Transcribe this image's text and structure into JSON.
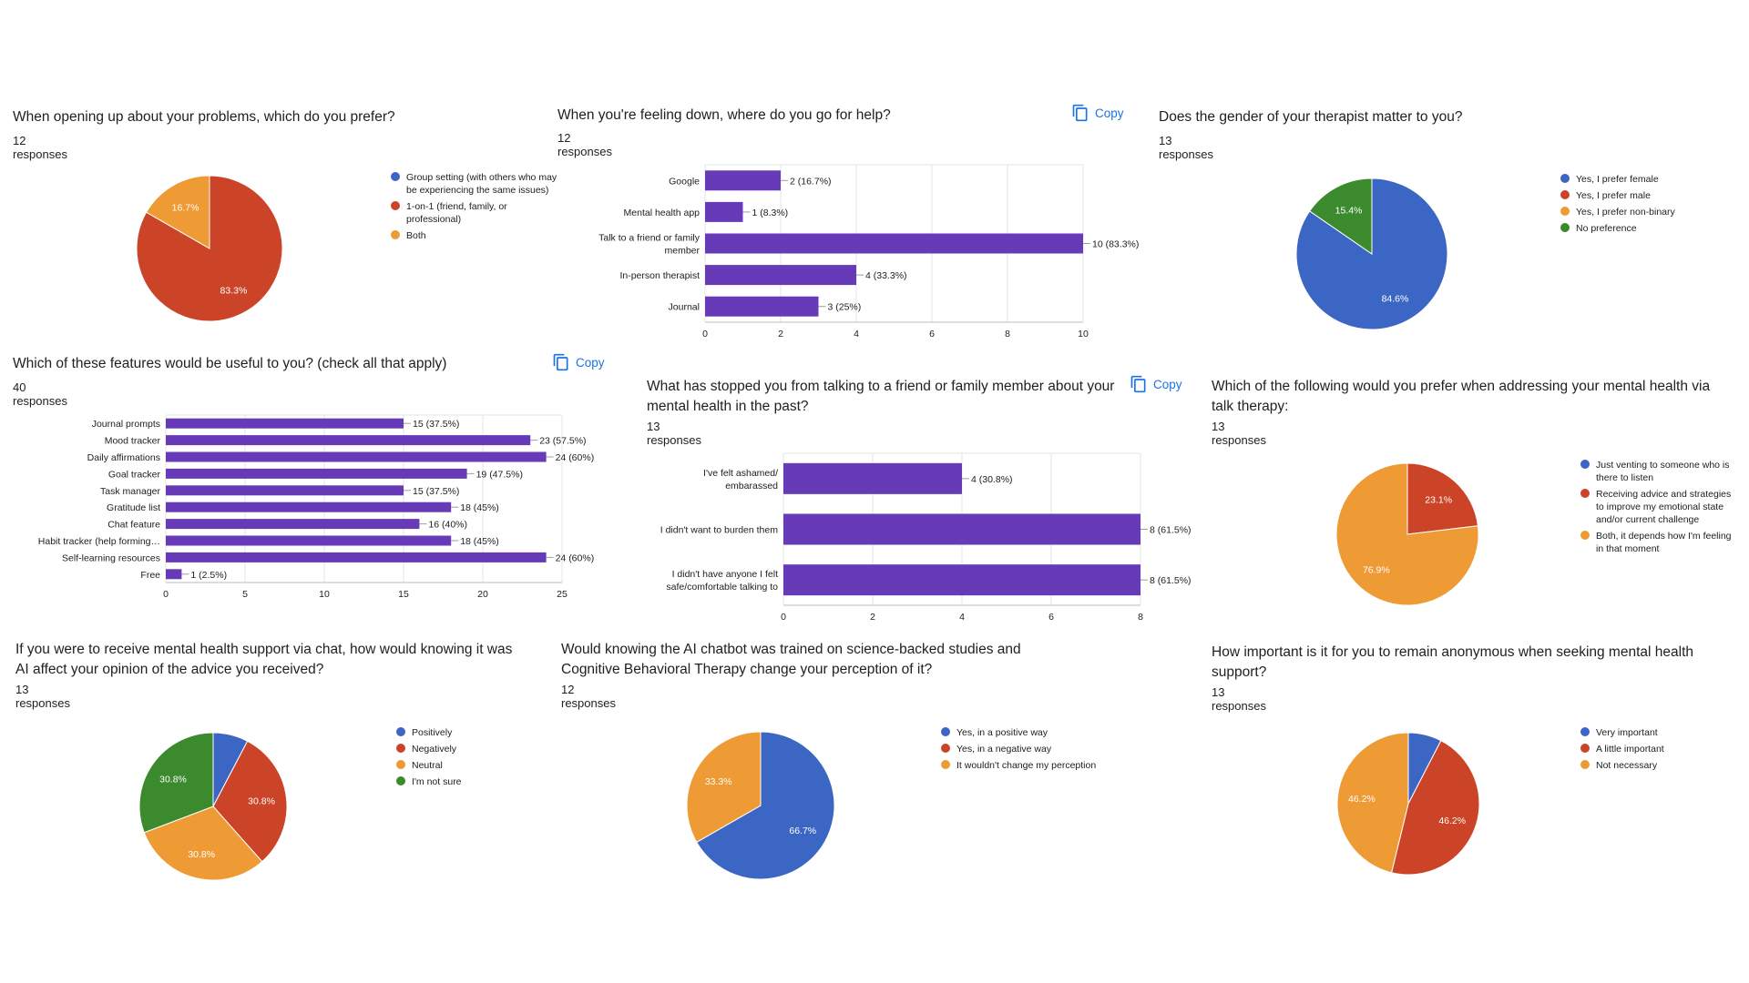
{
  "copy_label": "Copy",
  "colors": {
    "blue": "#3c66c4",
    "red": "#cb4428",
    "orange": "#ee9b35",
    "green": "#3b8a2e",
    "bar": "#673ab7",
    "grid": "#e6e6e6"
  },
  "chart_data": [
    {
      "type": "pie",
      "title": "When opening up about your problems, which do you prefer?",
      "subtitle": "12 responses",
      "labels": [
        "Group setting (with others who may be experiencing the same issues)",
        "1-on-1 (friend, family, or professional)",
        "Both"
      ],
      "values": [
        0,
        83.3,
        16.7
      ],
      "slice_labels": [
        "",
        "83.3%",
        "16.7%"
      ],
      "colors": [
        "#3c66c4",
        "#cb4428",
        "#ee9b35"
      ]
    },
    {
      "type": "bar",
      "title": "When you're feeling down, where do you go for help?",
      "subtitle": "12 responses",
      "has_copy": true,
      "categories": [
        "Google",
        "Mental health app",
        "Talk to a friend or family member",
        "In-person therapist",
        "Journal"
      ],
      "values": [
        2,
        1,
        10,
        4,
        3
      ],
      "value_labels": [
        "2 (16.7%)",
        "1 (8.3%)",
        "10 (83.3%)",
        "4 (33.3%)",
        "3 (25%)"
      ],
      "xlim": [
        0,
        10
      ],
      "ticks": [
        0,
        2,
        4,
        6,
        8,
        10
      ]
    },
    {
      "type": "pie",
      "title": "Does the gender of your therapist matter to you?",
      "subtitle": "13 responses",
      "labels": [
        "Yes, I prefer female",
        "Yes, I prefer male",
        "Yes, I prefer non-binary",
        "No preference"
      ],
      "values": [
        84.6,
        0,
        0,
        15.4
      ],
      "slice_labels": [
        "84.6%",
        "",
        "",
        "15.4%"
      ],
      "colors": [
        "#3c66c4",
        "#cb4428",
        "#ee9b35",
        "#3b8a2e"
      ]
    },
    {
      "type": "bar",
      "title": "Which of these features would be useful to you? (check all that apply)",
      "subtitle": "40 responses",
      "has_copy": true,
      "categories": [
        "Journal prompts",
        "Mood tracker",
        "Daily affirmations",
        "Goal tracker",
        "Task manager",
        "Gratitude list",
        "Chat feature",
        "Habit tracker (help forming…",
        "Self-learning resources",
        "Free"
      ],
      "values": [
        15,
        23,
        24,
        19,
        15,
        18,
        16,
        18,
        24,
        1
      ],
      "value_labels": [
        "15 (37.5%)",
        "23 (57.5%)",
        "24 (60%)",
        "19 (47.5%)",
        "15 (37.5%)",
        "18 (45%)",
        "16 (40%)",
        "18 (45%)",
        "24 (60%)",
        "1 (2.5%)"
      ],
      "xlim": [
        0,
        25
      ],
      "ticks": [
        0,
        5,
        10,
        15,
        20,
        25
      ]
    },
    {
      "type": "bar",
      "title": "What has stopped you from talking to a friend or family member about your mental health in the past?",
      "subtitle": "13 responses",
      "has_copy": true,
      "categories": [
        "I've felt ashamed/ embarassed",
        "I didn't want to burden them",
        "I didn't have anyone I felt safe/comfortable talking to"
      ],
      "values": [
        4,
        8,
        8
      ],
      "value_labels": [
        "4 (30.8%)",
        "8 (61.5%)",
        "8 (61.5%)"
      ],
      "xlim": [
        0,
        8
      ],
      "ticks": [
        0,
        2,
        4,
        6,
        8
      ]
    },
    {
      "type": "pie",
      "title": "Which of the following would you prefer when addressing your mental health via talk therapy:",
      "subtitle": "13 responses",
      "labels": [
        "Just venting to someone who is there to listen",
        "Receiving advice and strategies to improve my emotional state and/or current challenge",
        "Both, it depends how I'm feeling in that moment"
      ],
      "values": [
        0,
        23.1,
        76.9
      ],
      "slice_labels": [
        "",
        "23.1%",
        "76.9%"
      ],
      "colors": [
        "#3c66c4",
        "#cb4428",
        "#ee9b35"
      ]
    },
    {
      "type": "pie",
      "title": "If you were to receive mental health support via chat, how would knowing it was AI affect your opinion of the advice you received?",
      "subtitle": "13 responses",
      "labels": [
        "Positively",
        "Negatively",
        "Neutral",
        "I'm not sure"
      ],
      "values": [
        7.7,
        30.8,
        30.8,
        30.8
      ],
      "slice_labels": [
        "",
        "30.8%",
        "30.8%",
        "30.8%"
      ],
      "colors": [
        "#3c66c4",
        "#cb4428",
        "#ee9b35",
        "#3b8a2e"
      ]
    },
    {
      "type": "pie",
      "title": "Would knowing the AI chatbot was trained on science-backed studies and Cognitive Behavioral Therapy change your perception of it?",
      "subtitle": "12 responses",
      "labels": [
        "Yes, in a positive way",
        "Yes, in a negative way",
        "It wouldn't change my perception"
      ],
      "values": [
        66.7,
        0,
        33.3
      ],
      "slice_labels": [
        "66.7%",
        "",
        "33.3%"
      ],
      "colors": [
        "#3c66c4",
        "#cb4428",
        "#ee9b35"
      ]
    },
    {
      "type": "pie",
      "title": "How important is it for you to remain anonymous when seeking mental health support?",
      "subtitle": "13 responses",
      "labels": [
        "Very important",
        "A little important",
        "Not necessary"
      ],
      "values": [
        7.6,
        46.2,
        46.2
      ],
      "slice_labels": [
        "",
        "46.2%",
        "46.2%"
      ],
      "colors": [
        "#3c66c4",
        "#cb4428",
        "#ee9b35"
      ]
    }
  ]
}
